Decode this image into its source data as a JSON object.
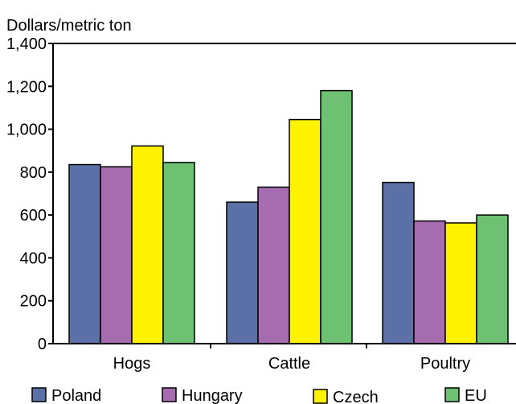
{
  "chart_data": {
    "type": "bar",
    "ylabel": "Dollars/metric ton",
    "categories": [
      "Hogs",
      "Cattle",
      "Poultry"
    ],
    "series": [
      {
        "name": "Poland",
        "color": "#5b70a6",
        "values": [
          835,
          660,
          752
        ]
      },
      {
        "name": "Hungary",
        "color": "#a56cb0",
        "values": [
          825,
          730,
          572
        ]
      },
      {
        "name": "Czech",
        "color": "#fff200",
        "values": [
          922,
          1045,
          563
        ]
      },
      {
        "name": "EU",
        "color": "#6ec173",
        "values": [
          845,
          1180,
          600
        ]
      }
    ],
    "ylim": [
      0,
      1400
    ],
    "yticks": [
      0,
      200,
      400,
      600,
      800,
      1000,
      1200,
      1400
    ],
    "ytick_labels": [
      "0",
      "200",
      "400",
      "600",
      "800",
      "1,000",
      "1,200",
      "1,400"
    ],
    "grid": false,
    "legend_position": "bottom"
  }
}
